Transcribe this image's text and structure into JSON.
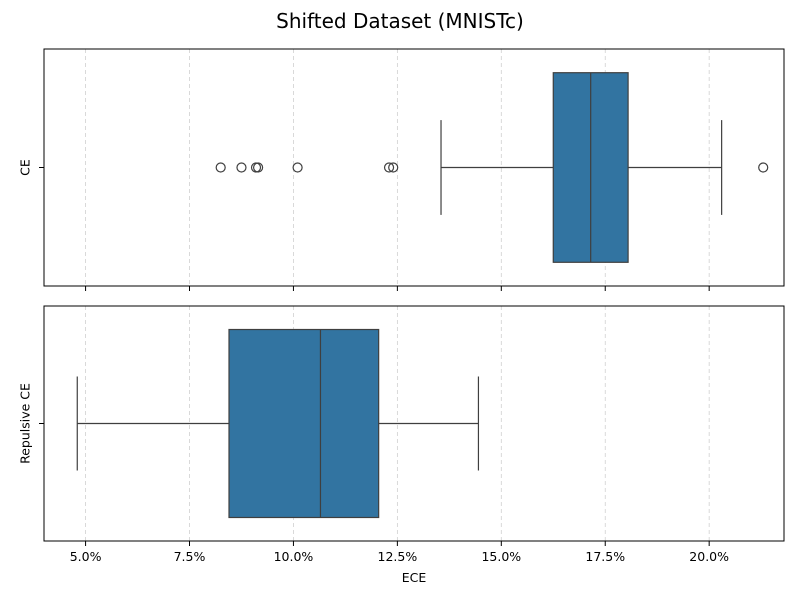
{
  "chart_data": {
    "type": "box",
    "orientation": "horizontal",
    "title": "Shifted Dataset (MNISTc)",
    "xlabel": "ECE",
    "x_tick_values": [
      5.0,
      7.5,
      10.0,
      12.5,
      15.0,
      17.5,
      20.0
    ],
    "x_tick_labels": [
      "5.0%",
      "7.5%",
      "10.0%",
      "12.5%",
      "15.0%",
      "17.5%",
      "20.0%"
    ],
    "xlim": [
      4.0,
      21.8
    ],
    "shared_x": true,
    "grid": "x-dashed",
    "box_color": "#3274a1",
    "line_color": "#3f3f3f",
    "series": [
      {
        "category": "CE",
        "whisker_low": 13.55,
        "q1": 16.25,
        "median": 17.15,
        "q3": 18.05,
        "whisker_high": 20.3,
        "outliers": [
          8.25,
          8.75,
          9.1,
          9.15,
          10.1,
          12.3,
          12.4,
          21.3
        ]
      },
      {
        "category": "Repulsive CE",
        "whisker_low": 4.8,
        "q1": 8.45,
        "median": 10.65,
        "q3": 12.05,
        "whisker_high": 14.45,
        "outliers": []
      }
    ]
  }
}
